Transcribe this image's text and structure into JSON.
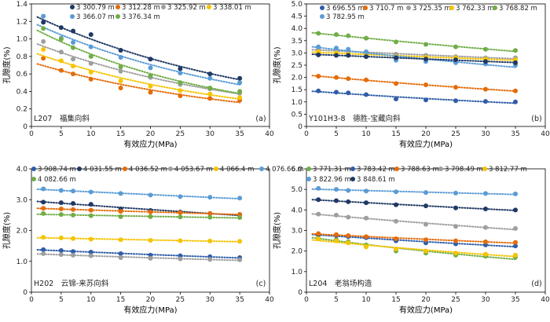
{
  "chart_data": [
    {
      "type": "scatter",
      "panel": "(a)",
      "annotation": "L207　福集向斜",
      "xlabel": "有效应力(MPa)",
      "ylabel": "孔隙度(%)",
      "xlim": [
        0,
        40
      ],
      "ylim": [
        0,
        1.4
      ],
      "xticks": [
        0,
        5,
        10,
        15,
        20,
        25,
        30,
        35,
        40
      ],
      "yticks": [
        0,
        0.2,
        0.4,
        0.6,
        0.8,
        1.0,
        1.2,
        1.4
      ],
      "yticklabels": [
        "0",
        "0.2",
        "0.4",
        "0.6",
        "0.8",
        "1.0",
        "1.2",
        "1.4"
      ],
      "x": [
        2,
        5,
        7,
        10,
        15,
        20,
        25,
        30,
        35
      ],
      "trendlines": "dotted exponential fit per series",
      "legend_position": "top",
      "series": [
        {
          "name": "3 300.79 m",
          "color": "#1f3864",
          "values": [
            1.19,
            1.13,
            1.09,
            1.05,
            0.87,
            0.77,
            0.66,
            0.6,
            0.55
          ]
        },
        {
          "name": "3 312.28 m",
          "color": "#e46c0a",
          "values": [
            0.78,
            0.64,
            0.6,
            0.54,
            0.44,
            0.39,
            0.35,
            0.32,
            0.3
          ]
        },
        {
          "name": "3 325.92 m",
          "color": "#9e9e9e",
          "values": [
            0.97,
            0.85,
            0.77,
            0.72,
            0.63,
            0.56,
            0.48,
            0.43,
            0.38
          ]
        },
        {
          "name": "3 338.01 m",
          "color": "#f5c400",
          "values": [
            0.88,
            0.75,
            0.69,
            0.62,
            0.52,
            0.46,
            0.41,
            0.37,
            0.33
          ]
        },
        {
          "name": "3 366.07 m",
          "color": "#5b9bd5",
          "values": [
            1.26,
            1.01,
            0.96,
            0.91,
            0.79,
            0.67,
            0.61,
            0.55,
            0.5
          ]
        },
        {
          "name": "3 376.34 m",
          "color": "#70ad47",
          "values": [
            1.12,
            1.0,
            0.9,
            0.8,
            0.68,
            0.58,
            0.5,
            0.44,
            0.4
          ]
        }
      ]
    },
    {
      "type": "scatter",
      "panel": "(b)",
      "annotation": "Y101H3-8　德胜-宝藏向斜",
      "xlabel": "有效应力(MPa)",
      "ylabel": "孔隙度(%)",
      "xlim": [
        0,
        40
      ],
      "ylim": [
        0,
        5.0
      ],
      "xticks": [
        0,
        5,
        10,
        15,
        20,
        25,
        30,
        35,
        40
      ],
      "yticks": [
        0,
        0.5,
        1.0,
        1.5,
        2.0,
        2.5,
        3.0,
        3.5,
        4.0,
        4.5,
        5.0
      ],
      "yticklabels": [
        "0",
        "0.5",
        "1.0",
        "1.5",
        "2.0",
        "2.5",
        "3.0",
        "3.5",
        "4.0",
        "4.5",
        "5.0"
      ],
      "x": [
        2,
        5,
        7,
        10,
        15,
        20,
        25,
        30,
        35
      ],
      "trendlines": "dotted exponential fit per series",
      "legend_position": "top",
      "series": [
        {
          "name": "3 696.55 m",
          "color": "#2e5da8",
          "values": [
            1.45,
            1.4,
            1.37,
            1.3,
            1.12,
            1.08,
            1.05,
            1.02,
            1.0
          ]
        },
        {
          "name": "3 710.7 m",
          "color": "#e46c0a",
          "values": [
            2.05,
            2.0,
            1.95,
            1.9,
            1.75,
            1.7,
            1.6,
            1.52,
            1.45
          ]
        },
        {
          "name": "3 725.35 m",
          "color": "#9e9e9e",
          "values": [
            3.15,
            3.1,
            3.05,
            3.02,
            2.95,
            2.9,
            2.85,
            2.8,
            2.8
          ]
        },
        {
          "name": "3 762.33 m",
          "color": "#f5c400",
          "values": [
            3.05,
            3.0,
            2.95,
            2.95,
            2.85,
            2.82,
            2.8,
            2.75,
            2.72
          ]
        },
        {
          "name": "3 768.82 m",
          "color": "#70ad47",
          "values": [
            3.8,
            3.75,
            3.7,
            3.6,
            3.45,
            3.35,
            3.25,
            3.15,
            3.1
          ]
        },
        {
          "name": "3 782.95 m",
          "color": "#5b9bd5",
          "values": [
            3.25,
            3.2,
            3.15,
            3.05,
            2.7,
            2.65,
            2.6,
            2.55,
            2.5
          ]
        },
        {
          "name": "",
          "color": "#1f3864",
          "values": [
            2.92,
            2.9,
            2.9,
            2.85,
            2.8,
            2.75,
            2.72,
            2.65,
            2.6
          ]
        }
      ]
    },
    {
      "type": "scatter",
      "panel": "(c)",
      "annotation": "H202　云锦-来苏向斜",
      "xlabel": "有效应力(MPa)",
      "ylabel": "孔隙度(%)",
      "xlim": [
        0,
        40
      ],
      "ylim": [
        0,
        4.0
      ],
      "xticks": [
        0,
        5,
        10,
        15,
        20,
        25,
        30,
        35,
        40
      ],
      "yticks": [
        0,
        1.0,
        2.0,
        3.0,
        4.0
      ],
      "yticklabels": [
        "0",
        "1.0",
        "2.0",
        "3.0",
        "4.0"
      ],
      "x": [
        2,
        5,
        7,
        10,
        15,
        20,
        25,
        30,
        35
      ],
      "trendlines": "dotted exponential fit per series",
      "legend_position": "top",
      "series": [
        {
          "name": "3 908.74 m",
          "color": "#2e5da8",
          "values": [
            1.38,
            1.35,
            1.32,
            1.3,
            1.25,
            1.2,
            1.18,
            1.15,
            1.12
          ]
        },
        {
          "name": "4 031.55 m",
          "color": "#1f3864",
          "values": [
            2.92,
            2.9,
            2.88,
            2.85,
            2.7,
            2.65,
            2.6,
            2.55,
            2.52
          ]
        },
        {
          "name": "4 036.52 m",
          "color": "#e46c0a",
          "values": [
            2.72,
            2.7,
            2.68,
            2.66,
            2.62,
            2.6,
            2.58,
            2.55,
            2.52
          ]
        },
        {
          "name": "4 053.67 m",
          "color": "#9e9e9e",
          "values": [
            1.25,
            1.22,
            1.2,
            1.18,
            1.12,
            1.1,
            1.08,
            1.06,
            1.05
          ]
        },
        {
          "name": "4 066.4 m",
          "color": "#f5c400",
          "values": [
            1.78,
            1.76,
            1.74,
            1.72,
            1.7,
            1.68,
            1.67,
            1.66,
            1.65
          ]
        },
        {
          "name": "4 076.66 m",
          "color": "#5b9bd5",
          "values": [
            3.35,
            3.3,
            3.28,
            3.25,
            3.2,
            3.15,
            3.1,
            3.08,
            3.05
          ]
        },
        {
          "name": "4 082.66 m",
          "color": "#70ad47",
          "values": [
            2.55,
            2.52,
            2.5,
            2.48,
            2.45,
            2.45,
            2.44,
            2.43,
            2.42
          ]
        }
      ]
    },
    {
      "type": "scatter",
      "panel": "(d)",
      "annotation": "L204　老翁场构造",
      "xlabel": "有效应力(MPa)",
      "ylabel": "孔隙度(%)",
      "xlim": [
        0,
        40
      ],
      "ylim": [
        0,
        6.0
      ],
      "xticks": [
        0,
        5,
        10,
        15,
        20,
        25,
        30,
        35,
        40
      ],
      "yticks": [
        0,
        1.0,
        2.0,
        3.0,
        4.0,
        5.0,
        6.0
      ],
      "yticklabels": [
        "0",
        "1.0",
        "2.0",
        "3.0",
        "4.0",
        "5.0",
        "6.0"
      ],
      "x": [
        2,
        5,
        7,
        10,
        15,
        20,
        25,
        30,
        35
      ],
      "trendlines": "dotted exponential fit per series",
      "legend_position": "top",
      "series": [
        {
          "name": "3 771.31 m",
          "color": "#70ad47",
          "values": [
            2.75,
            2.55,
            2.45,
            2.3,
            2.0,
            1.9,
            1.8,
            1.75,
            1.7
          ]
        },
        {
          "name": "3 783.42 m",
          "color": "#2e5da8",
          "values": [
            2.8,
            2.75,
            2.7,
            2.65,
            2.5,
            2.4,
            2.35,
            2.3,
            2.25
          ]
        },
        {
          "name": "3 788.63 m",
          "color": "#e46c0a",
          "values": [
            2.85,
            2.8,
            2.75,
            2.7,
            2.6,
            2.55,
            2.5,
            2.45,
            2.42
          ]
        },
        {
          "name": "3 798.49 m",
          "color": "#9e9e9e",
          "values": [
            3.8,
            3.75,
            3.65,
            3.6,
            3.45,
            3.3,
            3.2,
            3.15,
            3.1
          ]
        },
        {
          "name": "3 812.77 m",
          "color": "#f5c400",
          "values": [
            2.6,
            2.5,
            2.4,
            2.2,
            2.1,
            2.0,
            1.9,
            1.85,
            1.8
          ]
        },
        {
          "name": "3 822.96 m",
          "color": "#5b9bd5",
          "values": [
            5.05,
            5.0,
            4.95,
            4.92,
            4.88,
            4.85,
            4.82,
            4.8,
            4.78
          ]
        },
        {
          "name": "3 848.61 m",
          "color": "#1f3864",
          "values": [
            4.5,
            4.45,
            4.4,
            4.35,
            4.25,
            4.2,
            4.1,
            4.05,
            4.0
          ]
        }
      ]
    }
  ]
}
